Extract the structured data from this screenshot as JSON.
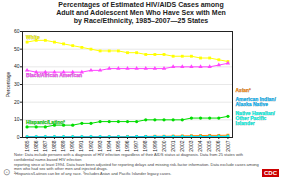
{
  "chart_data": {
    "type": "line",
    "title": "Percentages of Estimated HIV/AIDS Cases among\nAdult and Adolescent Men Who Have Sex with Men\nby Race/Ethnicity, 1985–2007—25 States",
    "ylabel": "Percentage",
    "x": [
      1985,
      1986,
      1987,
      1988,
      1989,
      1990,
      1991,
      1992,
      1993,
      1994,
      1995,
      1996,
      1997,
      1998,
      1999,
      2000,
      2001,
      2002,
      2003,
      2004,
      2005,
      2006,
      2007
    ],
    "xlim": [
      1984.5,
      2007.5
    ],
    "xticks": [
      1985,
      1986,
      1987,
      1988,
      1989,
      1990,
      1991,
      1992,
      1993,
      1994,
      1995,
      1996,
      1997,
      1998,
      1999,
      2000,
      2001,
      2002,
      2003,
      2004,
      2005,
      2006,
      2007
    ],
    "ylim": [
      0,
      60
    ],
    "yticks": [
      0,
      10,
      20,
      30,
      40,
      50,
      60
    ],
    "grid": true,
    "series": [
      {
        "name": "White",
        "color": "#ffff00",
        "marker": "square",
        "values": [
          54,
          55,
          55,
          54,
          53,
          52,
          51,
          50,
          49,
          49,
          49,
          48,
          48,
          47,
          47,
          47,
          46,
          46,
          46,
          45,
          45,
          44,
          43
        ]
      },
      {
        "name": "Black/African American",
        "color": "#ff44ff",
        "marker": "triangle",
        "values": [
          38,
          37,
          37,
          37,
          37,
          37,
          37,
          38,
          38,
          39,
          39,
          39,
          39,
          39,
          39,
          39,
          40,
          40,
          40,
          40,
          40,
          41,
          42
        ]
      },
      {
        "name": "Hispanic/Latino²",
        "color": "#00dd00",
        "marker": "circle",
        "values": [
          6,
          6,
          6,
          7,
          7,
          7,
          8,
          8,
          9,
          9,
          9,
          9,
          9,
          10,
          10,
          10,
          10,
          10,
          11,
          11,
          11,
          11,
          12
        ]
      },
      {
        "name": "Asian³",
        "color": "#ff8800",
        "marker": "square",
        "values": [
          0.3,
          0.3,
          0.3,
          0.3,
          0.3,
          0.3,
          0.3,
          0.3,
          0.3,
          0.4,
          0.4,
          0.5,
          0.5,
          0.6,
          0.7,
          0.7,
          0.8,
          0.9,
          1.0,
          1.1,
          1.2,
          1.2,
          1.3
        ]
      },
      {
        "name": "American Indian/\nAlaska Native",
        "color": "#00bbff",
        "marker": "circle",
        "values": [
          0.4,
          0.4,
          0.4,
          0.4,
          0.4,
          0.4,
          0.4,
          0.4,
          0.4,
          0.4,
          0.4,
          0.4,
          0.5,
          0.5,
          0.5,
          0.5,
          0.5,
          0.5,
          0.5,
          0.5,
          0.6,
          0.6,
          0.6
        ]
      },
      {
        "name": "Native Hawaiian/\nOther Pacific\nIslander",
        "color": "#00ffee",
        "marker": "diamond",
        "values": [
          0.1,
          0.1,
          0.1,
          0.1,
          0.1,
          0.1,
          0.1,
          0.1,
          0.1,
          0.1,
          0.1,
          0.1,
          0.1,
          0.1,
          0.1,
          0.1,
          0.2,
          0.2,
          0.2,
          0.2,
          0.2,
          0.3,
          0.4
        ]
      }
    ],
    "annotations": [
      "Note: Data include persons with a diagnosis of HIV infection regardless of their AIDS status at diagnosis. Data from 25 states with confidential name-based HIV infection\nreporting since at least 1994. Data have been adjusted for reporting delays and missing risk-factor information. Data exclude cases among men who had sex with other men and injected drugs.\n²Hispanics/Latinos can be of any race.   ³Includes Asian and Pacific Islander legacy cases.",
      "CDC",
      "⊙"
    ]
  }
}
